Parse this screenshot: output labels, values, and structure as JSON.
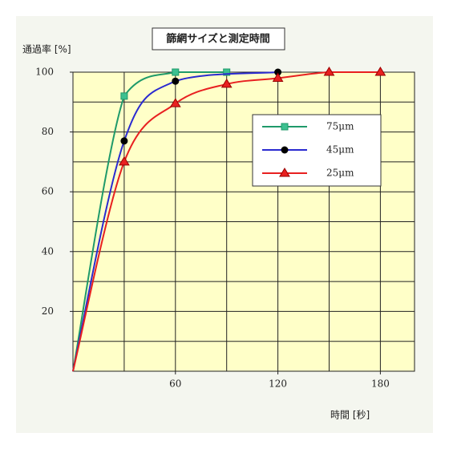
{
  "chart_data": {
    "type": "line",
    "title": "篩網サイズと測定時間",
    "y_label": "通過率 [%]",
    "x_label": "時間 [秒]",
    "xlim": [
      0,
      200
    ],
    "ylim": [
      0,
      100
    ],
    "xticks": [
      60,
      120,
      180
    ],
    "yticks": [
      20,
      40,
      60,
      80,
      100
    ],
    "xgrid": [
      30,
      60,
      90,
      120,
      150,
      180
    ],
    "ygrid": [
      10,
      20,
      30,
      40,
      50,
      60,
      70,
      80,
      90,
      100
    ],
    "grid": true,
    "plot_color": "#ffffc8",
    "legend": "upper right",
    "series": [
      {
        "name": "75μm",
        "color": "#1f9a6a",
        "marker": "square",
        "x": [
          0,
          30,
          60,
          90
        ],
        "values": [
          0,
          92,
          100,
          100
        ]
      },
      {
        "name": "45μm",
        "color": "#2a2ad0",
        "marker": "circle",
        "x": [
          0,
          30,
          60,
          120
        ],
        "values": [
          0,
          77,
          97,
          100
        ]
      },
      {
        "name": "25μm",
        "color": "#e82020",
        "marker": "triangle",
        "x": [
          0,
          30,
          60,
          90,
          120,
          150,
          180
        ],
        "values": [
          0,
          70,
          89.5,
          96,
          98,
          100,
          100
        ]
      }
    ]
  }
}
